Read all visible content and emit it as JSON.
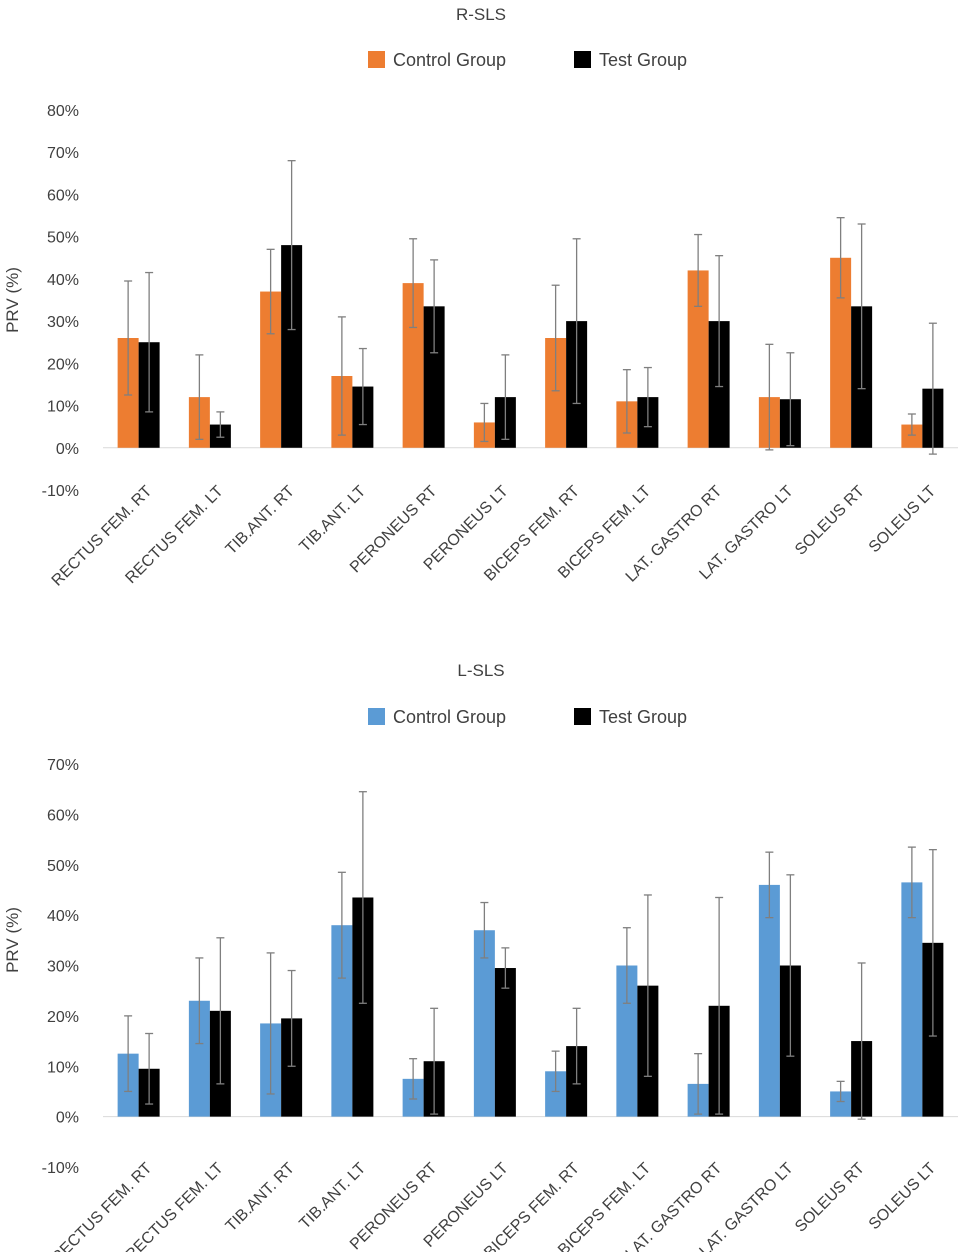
{
  "chart_data": [
    {
      "type": "bar",
      "title": "R-SLS",
      "ylabel": "PRV (%)",
      "xlabel": "",
      "ylim": [
        -0.1,
        0.8
      ],
      "yticks": [
        "80%",
        "70%",
        "60%",
        "50%",
        "40%",
        "30%",
        "20%",
        "10%",
        "0%",
        "-10%"
      ],
      "ytick_values": [
        0.8,
        0.7,
        0.6,
        0.5,
        0.4,
        0.3,
        0.2,
        0.1,
        0.0,
        -0.1
      ],
      "legend_position": "top-center",
      "grid": false,
      "categories": [
        "RECTUS FEM. RT",
        "RECTUS FEM. LT",
        "TIB.ANT. RT",
        "TIB.ANT. LT",
        "PERONEUS RT",
        "PERONEUS LT",
        "BICEPS FEM. RT",
        "BICEPS FEM. LT",
        "LAT. GASTRO RT",
        "LAT. GASTRO LT",
        "SOLEUS RT",
        "SOLEUS LT"
      ],
      "series": [
        {
          "name": "Control Group",
          "color": "#ED7D31",
          "values": [
            0.26,
            0.12,
            0.37,
            0.17,
            0.39,
            0.06,
            0.26,
            0.11,
            0.42,
            0.12,
            0.45,
            0.055
          ],
          "error": [
            0.135,
            0.1,
            0.1,
            0.14,
            0.105,
            0.045,
            0.125,
            0.075,
            0.085,
            0.125,
            0.095,
            0.025
          ]
        },
        {
          "name": "Test Group",
          "color": "#000000",
          "values": [
            0.25,
            0.055,
            0.48,
            0.145,
            0.335,
            0.12,
            0.3,
            0.12,
            0.3,
            0.115,
            0.335,
            0.14
          ],
          "error": [
            0.165,
            0.03,
            0.2,
            0.09,
            0.11,
            0.1,
            0.195,
            0.07,
            0.155,
            0.11,
            0.195,
            0.155
          ]
        }
      ]
    },
    {
      "type": "bar",
      "title": "L-SLS",
      "ylabel": "PRV (%)",
      "xlabel": "",
      "ylim": [
        -0.1,
        0.7
      ],
      "yticks": [
        "70%",
        "60%",
        "50%",
        "40%",
        "30%",
        "20%",
        "10%",
        "0%",
        "-10%"
      ],
      "ytick_values": [
        0.7,
        0.6,
        0.5,
        0.4,
        0.3,
        0.2,
        0.1,
        0.0,
        -0.1
      ],
      "legend_position": "top-center",
      "grid": false,
      "categories": [
        "RECTUS FEM. RT",
        "RECTUS FEM. LT",
        "TIB.ANT. RT",
        "TIB.ANT. LT",
        "PERONEUS RT",
        "PERONEUS LT",
        "BICEPS FEM. RT",
        "BICEPS FEM. LT",
        "LAT. GASTRO RT",
        "LAT. GASTRO LT",
        "SOLEUS RT",
        "SOLEUS LT"
      ],
      "series": [
        {
          "name": "Control Group",
          "color": "#5B9BD5",
          "values": [
            0.125,
            0.23,
            0.185,
            0.38,
            0.075,
            0.37,
            0.09,
            0.3,
            0.065,
            0.46,
            0.05,
            0.465
          ],
          "error": [
            0.075,
            0.085,
            0.14,
            0.105,
            0.04,
            0.055,
            0.04,
            0.075,
            0.06,
            0.065,
            0.02,
            0.07
          ]
        },
        {
          "name": "Test Group",
          "color": "#000000",
          "values": [
            0.095,
            0.21,
            0.195,
            0.435,
            0.11,
            0.295,
            0.14,
            0.26,
            0.22,
            0.3,
            0.15,
            0.345
          ],
          "error": [
            0.07,
            0.145,
            0.095,
            0.21,
            0.105,
            0.04,
            0.075,
            0.18,
            0.215,
            0.18,
            0.155,
            0.185
          ]
        }
      ]
    }
  ]
}
